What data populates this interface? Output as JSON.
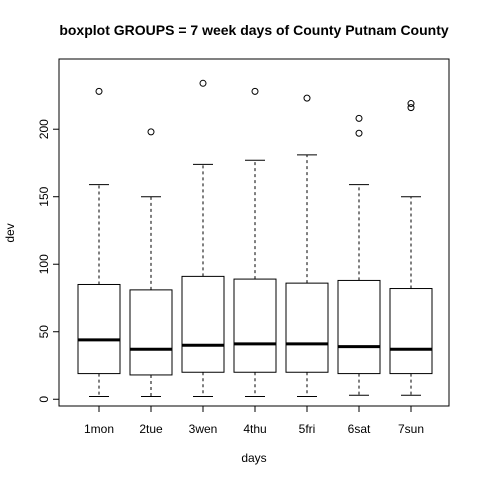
{
  "chart_data": {
    "type": "boxplot",
    "title": "boxplot GROUPS = 7 week days of County Putnam County",
    "xlabel": "days",
    "ylabel": "dev",
    "ylim": [
      -5,
      252
    ],
    "yticks": [
      0,
      50,
      100,
      150,
      200
    ],
    "categories": [
      "1mon",
      "2tue",
      "3wen",
      "4thu",
      "5fri",
      "6sat",
      "7sun"
    ],
    "boxes": [
      {
        "min": 2,
        "q1": 19,
        "median": 44,
        "q3": 85,
        "max": 159,
        "outliers": [
          228
        ]
      },
      {
        "min": 2,
        "q1": 18,
        "median": 37,
        "q3": 81,
        "max": 150,
        "outliers": [
          198
        ]
      },
      {
        "min": 2,
        "q1": 20,
        "median": 40,
        "q3": 91,
        "max": 174,
        "outliers": [
          234
        ]
      },
      {
        "min": 2,
        "q1": 20,
        "median": 41,
        "q3": 89,
        "max": 177,
        "outliers": [
          228
        ]
      },
      {
        "min": 2,
        "q1": 20,
        "median": 41,
        "q3": 86,
        "max": 181,
        "outliers": [
          223
        ]
      },
      {
        "min": 3,
        "q1": 19,
        "median": 39,
        "q3": 88,
        "max": 159,
        "outliers": [
          197,
          208
        ]
      },
      {
        "min": 3,
        "q1": 19,
        "median": 37,
        "q3": 82,
        "max": 150,
        "outliers": [
          216,
          219
        ]
      }
    ],
    "grid": false,
    "legend": "none"
  }
}
